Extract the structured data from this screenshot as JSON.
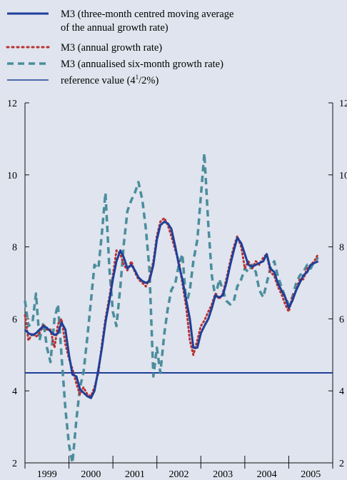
{
  "chart_data": {
    "type": "line",
    "legend": {
      "position": "top",
      "entries": [
        {
          "line1": "M3 (three-month centred moving average",
          "line2": "of the annual growth rate)",
          "style": "solid-thick",
          "color": "#1f3f99"
        },
        {
          "line1": "M3 (annual growth rate)",
          "style": "dotted",
          "color": "#b83232"
        },
        {
          "line1": "M3 (annualised six-month growth rate)",
          "style": "dashed",
          "color": "#4b8d9c"
        },
        {
          "line1_main": "reference value (4",
          "line1_sup": "1",
          "line1_frac": "/2%)",
          "style": "solid-thin",
          "color": "#1f3f99"
        }
      ]
    },
    "x_axis": {
      "categories": [
        "1999",
        "2000",
        "2001",
        "2002",
        "2003",
        "2004",
        "2005"
      ],
      "range": [
        1999.0,
        2006.0
      ]
    },
    "y_axis": {
      "ylim": [
        2,
        12
      ],
      "ticks": [
        "2",
        "4",
        "6",
        "8",
        "10",
        "12"
      ],
      "ticks_right": [
        "2",
        "4",
        "6",
        "8",
        "10",
        "12"
      ]
    },
    "reference_value": 4.5,
    "series": [
      {
        "name": "M3 (three-month centred moving average of the annual growth rate)",
        "key": "ma",
        "color": "#1f3f99",
        "x": [
          1999.0,
          1999.08,
          1999.17,
          1999.25,
          1999.33,
          1999.42,
          1999.5,
          1999.58,
          1999.67,
          1999.75,
          1999.83,
          1999.92,
          2000.0,
          2000.08,
          2000.17,
          2000.25,
          2000.33,
          2000.42,
          2000.5,
          2000.58,
          2000.67,
          2000.75,
          2000.83,
          2000.92,
          2001.0,
          2001.08,
          2001.17,
          2001.25,
          2001.33,
          2001.42,
          2001.5,
          2001.58,
          2001.67,
          2001.75,
          2001.83,
          2001.92,
          2002.0,
          2002.08,
          2002.17,
          2002.25,
          2002.33,
          2002.42,
          2002.5,
          2002.58,
          2002.67,
          2002.75,
          2002.83,
          2002.92,
          2003.0,
          2003.08,
          2003.17,
          2003.25,
          2003.33,
          2003.42,
          2003.5,
          2003.58,
          2003.67,
          2003.75,
          2003.83,
          2003.92,
          2004.0,
          2004.08,
          2004.17,
          2004.25,
          2004.33,
          2004.42,
          2004.5,
          2004.58,
          2004.67,
          2004.75,
          2004.83,
          2004.92,
          2005.0,
          2005.08,
          2005.17,
          2005.25,
          2005.33,
          2005.42,
          2005.5,
          2005.58,
          2005.67
        ],
        "values": [
          5.7,
          5.6,
          5.55,
          5.6,
          5.7,
          5.8,
          5.75,
          5.65,
          5.55,
          5.6,
          5.9,
          5.7,
          5.0,
          4.45,
          4.4,
          4.05,
          3.95,
          3.85,
          3.8,
          4.0,
          4.6,
          5.2,
          5.9,
          6.5,
          7.1,
          7.6,
          7.9,
          7.7,
          7.4,
          7.5,
          7.35,
          7.15,
          7.05,
          7.0,
          7.05,
          7.5,
          8.2,
          8.6,
          8.7,
          8.65,
          8.5,
          8.0,
          7.5,
          7.1,
          6.5,
          6.0,
          5.2,
          5.2,
          5.6,
          5.8,
          6.0,
          6.3,
          6.65,
          6.6,
          6.65,
          7.0,
          7.5,
          7.9,
          8.25,
          8.1,
          7.8,
          7.5,
          7.45,
          7.5,
          7.55,
          7.6,
          7.8,
          7.4,
          7.3,
          7.0,
          6.8,
          6.6,
          6.3,
          6.5,
          6.8,
          7.0,
          7.2,
          7.3,
          7.5,
          7.55,
          7.6
        ]
      },
      {
        "name": "M3 (annual growth rate)",
        "key": "annual",
        "color": "#b83232",
        "x": [
          1999.0,
          1999.08,
          1999.17,
          1999.25,
          1999.33,
          1999.42,
          1999.5,
          1999.58,
          1999.67,
          1999.75,
          1999.83,
          1999.92,
          2000.0,
          2000.08,
          2000.17,
          2000.25,
          2000.33,
          2000.42,
          2000.5,
          2000.58,
          2000.67,
          2000.75,
          2000.83,
          2000.92,
          2001.0,
          2001.08,
          2001.17,
          2001.25,
          2001.33,
          2001.42,
          2001.5,
          2001.58,
          2001.67,
          2001.75,
          2001.83,
          2001.92,
          2002.0,
          2002.08,
          2002.17,
          2002.25,
          2002.33,
          2002.42,
          2002.5,
          2002.58,
          2002.67,
          2002.75,
          2002.83,
          2002.92,
          2003.0,
          2003.08,
          2003.17,
          2003.25,
          2003.33,
          2003.42,
          2003.5,
          2003.58,
          2003.67,
          2003.75,
          2003.83,
          2003.92,
          2004.0,
          2004.08,
          2004.17,
          2004.25,
          2004.33,
          2004.42,
          2004.5,
          2004.58,
          2004.67,
          2004.75,
          2004.83,
          2004.92,
          2005.0,
          2005.08,
          2005.17,
          2005.25,
          2005.33,
          2005.42,
          2005.5,
          2005.58,
          2005.67
        ],
        "values": [
          6.1,
          5.4,
          5.6,
          5.5,
          5.6,
          5.85,
          5.7,
          5.7,
          5.2,
          5.85,
          6.0,
          5.3,
          4.9,
          4.6,
          4.2,
          3.9,
          4.1,
          3.9,
          3.85,
          4.1,
          4.5,
          5.3,
          6.0,
          6.6,
          7.2,
          7.9,
          7.8,
          7.5,
          7.35,
          7.6,
          7.3,
          7.1,
          7.0,
          6.9,
          7.1,
          7.6,
          8.3,
          8.7,
          8.8,
          8.6,
          8.3,
          7.9,
          7.6,
          7.0,
          6.3,
          5.4,
          5.0,
          5.4,
          5.8,
          5.95,
          6.2,
          6.4,
          6.7,
          6.55,
          6.7,
          7.1,
          7.6,
          8.0,
          8.3,
          8.0,
          7.4,
          7.6,
          7.4,
          7.6,
          7.5,
          7.7,
          7.8,
          7.3,
          7.2,
          6.9,
          6.7,
          6.4,
          6.2,
          6.6,
          6.8,
          7.1,
          7.1,
          7.4,
          7.5,
          7.6,
          7.8
        ]
      },
      {
        "name": "M3 (annualised six-month growth rate)",
        "key": "sixm",
        "color": "#4b8d9c",
        "x": [
          1999.0,
          1999.08,
          1999.17,
          1999.25,
          1999.33,
          1999.42,
          1999.5,
          1999.58,
          1999.67,
          1999.75,
          1999.83,
          1999.92,
          2000.0,
          2000.08,
          2000.17,
          2000.25,
          2000.33,
          2000.42,
          2000.5,
          2000.58,
          2000.67,
          2000.75,
          2000.83,
          2000.92,
          2001.0,
          2001.08,
          2001.17,
          2001.25,
          2001.33,
          2001.42,
          2001.5,
          2001.58,
          2001.67,
          2001.75,
          2001.83,
          2001.92,
          2002.0,
          2002.08,
          2002.17,
          2002.25,
          2002.33,
          2002.42,
          2002.5,
          2002.58,
          2002.67,
          2002.75,
          2002.83,
          2002.92,
          2003.0,
          2003.08,
          2003.17,
          2003.25,
          2003.33,
          2003.42,
          2003.5,
          2003.58,
          2003.67,
          2003.75,
          2003.83,
          2003.92,
          2004.0,
          2004.08,
          2004.17,
          2004.25,
          2004.33,
          2004.42,
          2004.5,
          2004.58,
          2004.67,
          2004.75,
          2004.83,
          2004.92,
          2005.0,
          2005.08,
          2005.17,
          2005.25,
          2005.33,
          2005.42,
          2005.5,
          2005.58,
          2005.67
        ],
        "values": [
          6.5,
          5.8,
          5.9,
          6.7,
          5.4,
          5.9,
          5.2,
          4.8,
          6.0,
          6.4,
          5.0,
          3.5,
          2.5,
          2.0,
          3.2,
          4.1,
          4.5,
          5.5,
          6.5,
          7.5,
          7.4,
          8.4,
          9.5,
          7.4,
          6.2,
          5.8,
          6.9,
          8.1,
          9.0,
          9.3,
          9.5,
          9.8,
          9.3,
          8.5,
          7.4,
          4.4,
          5.2,
          4.5,
          5.6,
          6.3,
          6.8,
          7.0,
          7.5,
          7.8,
          6.4,
          6.8,
          7.6,
          8.2,
          9.4,
          10.6,
          8.6,
          7.2,
          6.6,
          7.1,
          6.8,
          6.5,
          6.4,
          6.5,
          6.9,
          7.1,
          7.4,
          7.3,
          7.5,
          7.3,
          6.8,
          6.6,
          7.0,
          7.4,
          7.6,
          7.2,
          6.9,
          6.6,
          6.4,
          6.6,
          7.0,
          7.2,
          7.3,
          7.5,
          7.4,
          7.6,
          7.7
        ]
      }
    ]
  }
}
